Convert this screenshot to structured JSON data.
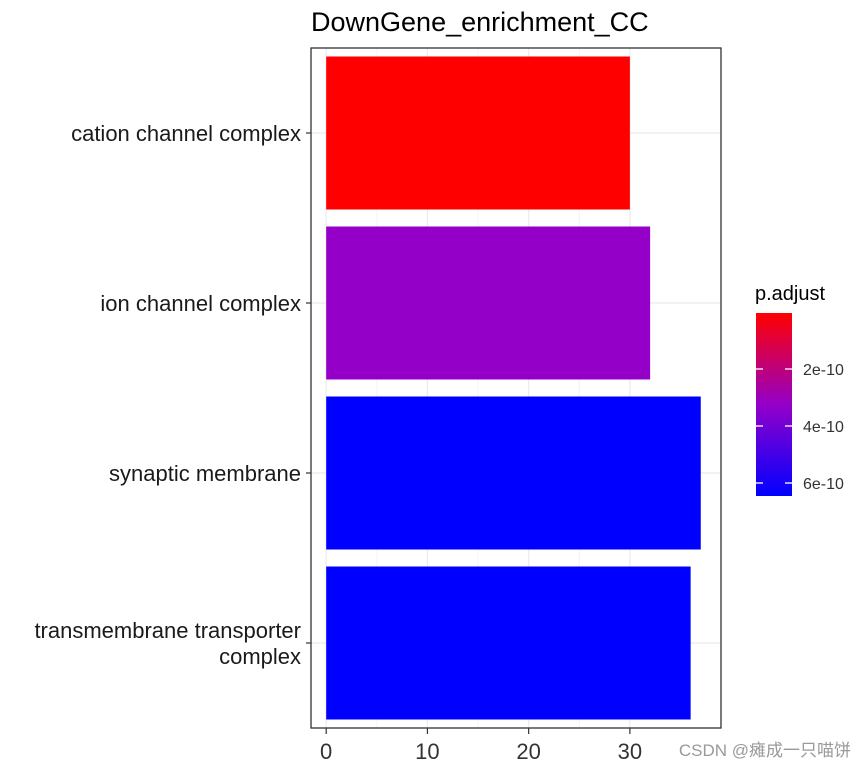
{
  "chart_data": {
    "type": "bar",
    "orientation": "horizontal",
    "title": "DownGene_enrichment_CC",
    "xlabel": "",
    "ylabel": "",
    "categories": [
      "cation channel complex",
      "ion channel complex",
      "synaptic membrane",
      "transmembrane transporter complex"
    ],
    "category_lines": [
      [
        "cation channel complex"
      ],
      [
        "ion channel complex"
      ],
      [
        "synaptic membrane"
      ],
      [
        "transmembrane transporter",
        "complex"
      ]
    ],
    "values": [
      30,
      32,
      37,
      36
    ],
    "colors": [
      "#FF0000",
      "#9400C8",
      "#0000FF",
      "#0000FF"
    ],
    "xlim": [
      -1.5,
      39
    ],
    "xticks": [
      0,
      10,
      20,
      30
    ],
    "grid": true,
    "legend": {
      "title": "p.adjust",
      "placement": "right",
      "type": "colorbar",
      "labels": [
        "2e-10",
        "4e-10",
        "6e-10"
      ],
      "gradient": [
        "#FF0000",
        "#0000FF"
      ]
    }
  },
  "watermark": "CSDN @瘫成一只喵饼"
}
